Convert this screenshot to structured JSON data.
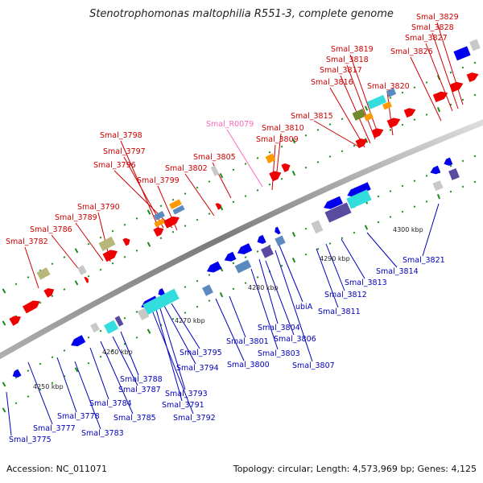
{
  "title": "Stenotrophomonas maltophilia R551-3, complete genome",
  "footer": {
    "accession": "Accession: NC_011071",
    "summary": "Topology: circular; Length: 4,573,969 bp; Genes: 4,125"
  },
  "colors": {
    "backbone": "#8a8a8a",
    "tick": "#1a8a1a",
    "forward_label": "#cc0000",
    "reverse_label": "#0000bb",
    "rna_label": "#ff66bb",
    "red": "#ee0000",
    "blue": "#0000ee",
    "cyan": "#33dddd",
    "purple": "#5a4aa0",
    "gray": "#c8c8c8",
    "olive": "#b7b77a",
    "green": "#6e8a2a",
    "orange": "#ff9900",
    "steel": "#5a8ac0"
  },
  "scale_labels": [
    "4250 kbp",
    "4260 kbp",
    "4270 kbp",
    "4280 kbp",
    "4290 kbp",
    "4300 kbp"
  ],
  "forward_labels": [
    "Smal_3829",
    "Smal_3828",
    "Smal_3827",
    "Smal_3826",
    "Smal_3819",
    "Smal_3818",
    "Smal_3817",
    "Smal_3816",
    "Smal_3820",
    "Smal_3815",
    "Smal_3810",
    "Smal_3809",
    "Smal_3798",
    "Smal_3797",
    "Smal_3796",
    "Smal_3805",
    "Smal_3802",
    "Smal_3799",
    "Smal_3790",
    "Smal_3789",
    "Smal_3786",
    "Smal_3782"
  ],
  "rna_labels": [
    "Smal_R0079"
  ],
  "reverse_labels": [
    "Smal_3821",
    "Smal_3814",
    "Smal_3813",
    "Smal_3812",
    "Smal_3811",
    "ubiA",
    "Smal_3804",
    "Smal_3806",
    "Smal_3803",
    "Smal_3807",
    "Smal_3801",
    "Smal_3800",
    "Smal_3795",
    "Smal_3794",
    "Smal_3793",
    "Smal_3791",
    "Smal_3792",
    "Smal_3788",
    "Smal_3787",
    "Smal_3785",
    "Smal_3784",
    "Smal_3778",
    "Smal_3777",
    "Smal_3783",
    "Smal_3775"
  ]
}
